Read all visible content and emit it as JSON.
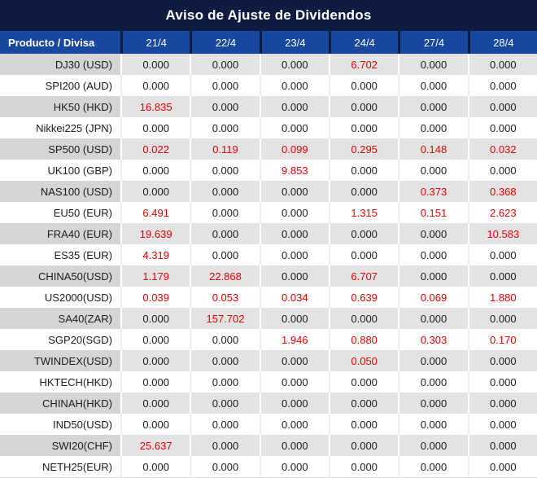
{
  "title": "Aviso de Ajuste de Dividendos",
  "colors": {
    "title_bg": "#0e1c41",
    "header_bg": "#17479e",
    "header_divider": "#0e1c41",
    "alt_row_product_bg": "#d5d5d5",
    "alt_row_value_bg": "#e3e3e3",
    "zero_value_text": "#1c1c1c",
    "adjustment_value_text": "#e60000",
    "bottom_edge": "#d9d9d9"
  },
  "table": {
    "product_header": "Producto / Divisa",
    "date_headers": [
      "21/4",
      "22/4",
      "23/4",
      "24/4",
      "27/4",
      "28/4"
    ],
    "rows": [
      {
        "product": "DJ30 (USD)",
        "values": [
          "0.000",
          "0.000",
          "0.000",
          "6.702",
          "0.000",
          "0.000"
        ]
      },
      {
        "product": "SPI200 (AUD)",
        "values": [
          "0.000",
          "0.000",
          "0.000",
          "0.000",
          "0.000",
          "0.000"
        ]
      },
      {
        "product": "HK50 (HKD)",
        "values": [
          "16.835",
          "0.000",
          "0.000",
          "0.000",
          "0.000",
          "0.000"
        ]
      },
      {
        "product": "Nikkei225 (JPN)",
        "values": [
          "0.000",
          "0.000",
          "0.000",
          "0.000",
          "0.000",
          "0.000"
        ]
      },
      {
        "product": "SP500 (USD)",
        "values": [
          "0.022",
          "0.119",
          "0.099",
          "0.295",
          "0.148",
          "0.032"
        ]
      },
      {
        "product": "UK100 (GBP)",
        "values": [
          "0.000",
          "0.000",
          "9.853",
          "0.000",
          "0.000",
          "0.000"
        ]
      },
      {
        "product": "NAS100 (USD)",
        "values": [
          "0.000",
          "0.000",
          "0.000",
          "0.000",
          "0.373",
          "0.368"
        ]
      },
      {
        "product": "EU50 (EUR)",
        "values": [
          "6.491",
          "0.000",
          "0.000",
          "1.315",
          "0.151",
          "2.623"
        ]
      },
      {
        "product": "FRA40 (EUR)",
        "values": [
          "19.639",
          "0.000",
          "0.000",
          "0.000",
          "0.000",
          "10.583"
        ]
      },
      {
        "product": "ES35 (EUR)",
        "values": [
          "4.319",
          "0.000",
          "0.000",
          "0.000",
          "0.000",
          "0.000"
        ]
      },
      {
        "product": "CHINA50(USD)",
        "values": [
          "1.179",
          "22.868",
          "0.000",
          "6.707",
          "0.000",
          "0.000"
        ]
      },
      {
        "product": "US2000(USD)",
        "values": [
          "0.039",
          "0.053",
          "0.034",
          "0.639",
          "0.069",
          "1.880"
        ]
      },
      {
        "product": "SA40(ZAR)",
        "values": [
          "0.000",
          "157.702",
          "0.000",
          "0.000",
          "0.000",
          "0.000"
        ]
      },
      {
        "product": "SGP20(SGD)",
        "values": [
          "0.000",
          "0.000",
          "1.946",
          "0.880",
          "0.303",
          "0.170"
        ]
      },
      {
        "product": "TWINDEX(USD)",
        "values": [
          "0.000",
          "0.000",
          "0.000",
          "0.050",
          "0.000",
          "0.000"
        ]
      },
      {
        "product": "HKTECH(HKD)",
        "values": [
          "0.000",
          "0.000",
          "0.000",
          "0.000",
          "0.000",
          "0.000"
        ]
      },
      {
        "product": "CHINAH(HKD)",
        "values": [
          "0.000",
          "0.000",
          "0.000",
          "0.000",
          "0.000",
          "0.000"
        ]
      },
      {
        "product": "IND50(USD)",
        "values": [
          "0.000",
          "0.000",
          "0.000",
          "0.000",
          "0.000",
          "0.000"
        ]
      },
      {
        "product": "SWI20(CHF)",
        "values": [
          "25.637",
          "0.000",
          "0.000",
          "0.000",
          "0.000",
          "0.000"
        ]
      },
      {
        "product": "NETH25(EUR)",
        "values": [
          "0.000",
          "0.000",
          "0.000",
          "0.000",
          "0.000",
          "0.000"
        ]
      }
    ]
  }
}
